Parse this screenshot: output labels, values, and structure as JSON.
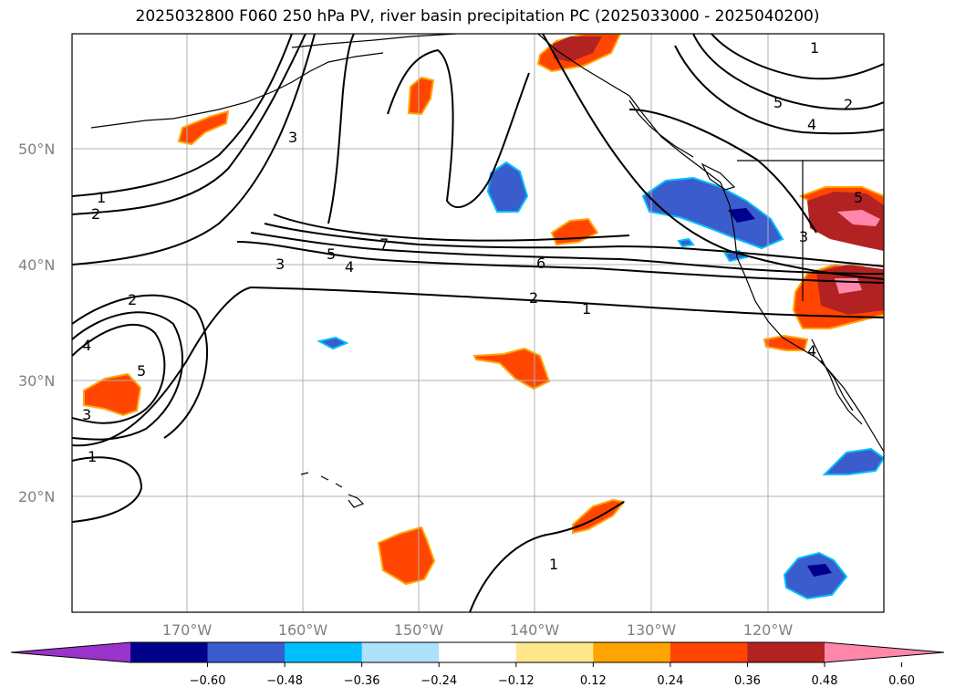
{
  "title": "2025032800 F060 250 hPa PV, river basin precipitation PC (2025033000 - 2025040200)",
  "map": {
    "lat_labels": [
      "50°N",
      "40°N",
      "30°N",
      "20°N"
    ],
    "lon_labels": [
      "170°W",
      "160°W",
      "150°W",
      "140°W",
      "130°W",
      "120°W"
    ],
    "grid_color": "#b0b0b0",
    "pv_contour_labels": [
      "1",
      "2",
      "3",
      "4",
      "5",
      "6",
      "7",
      "1",
      "2",
      "3",
      "4",
      "5",
      "1",
      "2",
      "3",
      "4",
      "5",
      "1",
      "1",
      "2",
      "3",
      "4",
      "5"
    ]
  },
  "colorbar": {
    "ticks": [
      "−0.60",
      "−0.48",
      "−0.36",
      "−0.24",
      "−0.12",
      "0.12",
      "0.24",
      "0.36",
      "0.48",
      "0.60"
    ],
    "colors": [
      "#9a33cc",
      "#00008b",
      "#3a5ccc",
      "#00bfff",
      "#aee2fa",
      "#ffffff",
      "#ffe88c",
      "#ffa500",
      "#ff4500",
      "#b22222",
      "#ff88aa"
    ]
  }
}
